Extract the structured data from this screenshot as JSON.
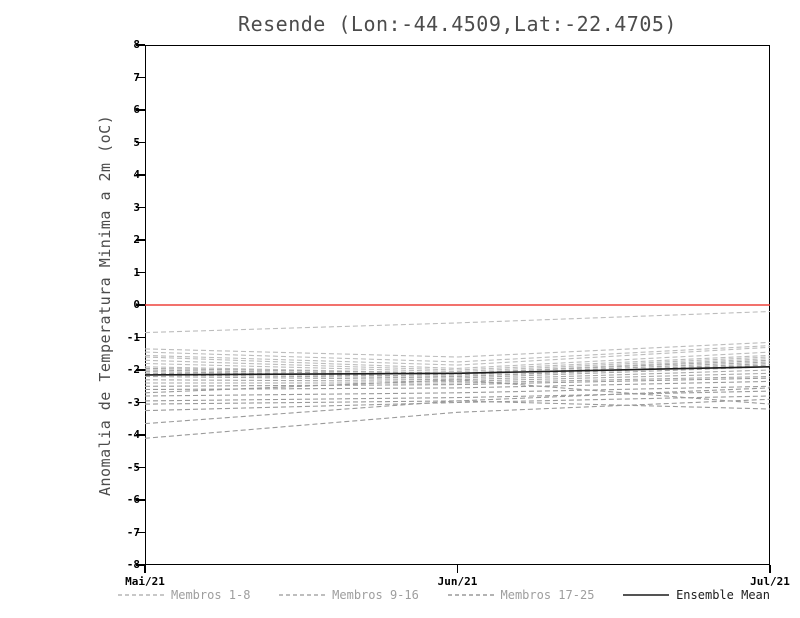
{
  "chart_data": {
    "type": "line",
    "title": "Resende (Lon:-44.4509,Lat:-22.4705)",
    "ylabel": "Anomalia de Temperatura Minima a 2m (oC)",
    "xlabel": "",
    "x_ticklabels": [
      "Mai/21",
      "Jun/21",
      "Jul/21"
    ],
    "ylim": [
      -8,
      8
    ],
    "ytick_step": 1,
    "grid": false,
    "frame_color": "#000000",
    "zero_line": {
      "value": 0,
      "color": "#ee423b"
    },
    "member_groups": [
      {
        "label": "Membros 1-8",
        "style": "dashed",
        "color": "#bcbcbc",
        "members": [
          [
            -0.85,
            -0.55,
            -0.2
          ],
          [
            -1.35,
            -1.6,
            -1.15
          ],
          [
            -1.45,
            -1.75,
            -1.25
          ],
          [
            -1.55,
            -1.85,
            -1.3
          ],
          [
            -1.6,
            -1.95,
            -1.45
          ],
          [
            -1.7,
            -2.0,
            -1.55
          ],
          [
            -1.8,
            -2.05,
            -1.6
          ],
          [
            -1.9,
            -2.1,
            -1.65
          ]
        ]
      },
      {
        "label": "Membros 9-16",
        "style": "dashed",
        "color": "#a8a8a8",
        "members": [
          [
            -1.95,
            -2.1,
            -1.7
          ],
          [
            -2.0,
            -2.15,
            -1.75
          ],
          [
            -2.05,
            -2.2,
            -1.8
          ],
          [
            -2.1,
            -2.2,
            -1.85
          ],
          [
            -2.15,
            -2.25,
            -1.9
          ],
          [
            -2.2,
            -2.3,
            -2.0
          ],
          [
            -2.3,
            -2.35,
            -2.1
          ],
          [
            -2.4,
            -2.4,
            -2.2
          ]
        ]
      },
      {
        "label": "Membros 17-25",
        "style": "dashed",
        "color": "#9a9a9a",
        "members": [
          [
            -2.5,
            -2.45,
            -2.25
          ],
          [
            -2.6,
            -2.55,
            -2.35
          ],
          [
            -2.7,
            -2.3,
            -3.05
          ],
          [
            -2.8,
            -2.7,
            -2.5
          ],
          [
            -2.95,
            -2.85,
            -2.65
          ],
          [
            -3.05,
            -2.95,
            -3.2
          ],
          [
            -3.25,
            -3.0,
            -2.8
          ],
          [
            -3.65,
            -2.95,
            -2.55
          ],
          [
            -4.1,
            -3.3,
            -2.9
          ]
        ]
      }
    ],
    "ensemble_mean": {
      "label": "Ensemble Mean",
      "style": "solid",
      "color": "#1c1c1c",
      "values": [
        -2.15,
        -2.1,
        -1.9
      ]
    },
    "legend": [
      {
        "label": "Membros 1-8",
        "style": "dashed",
        "color": "#b5b5b5",
        "text_color": "#9e9e9e"
      },
      {
        "label": "Membros 9-16",
        "style": "dashed",
        "color": "#a8a8a8",
        "text_color": "#9e9e9e"
      },
      {
        "label": "Membros 17-25",
        "style": "dashed",
        "color": "#9a9a9a",
        "text_color": "#9e9e9e"
      },
      {
        "label": "Ensemble Mean",
        "style": "solid",
        "color": "#1c1c1c",
        "text_color": "#1c1c1c"
      }
    ]
  }
}
